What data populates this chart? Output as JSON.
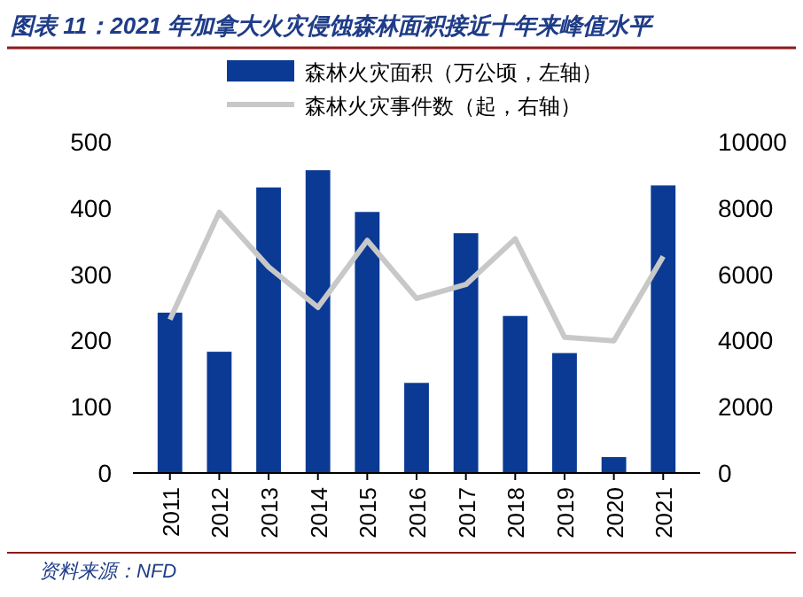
{
  "chart_data": {
    "type": "bar",
    "title": "图表 11：2021 年加拿大火灾侵蚀森林面积接近十年来峰值水平",
    "annotations": [
      "资料来源：NFD"
    ],
    "categories": [
      "2011",
      "2012",
      "2013",
      "2014",
      "2015",
      "2016",
      "2017",
      "2018",
      "2019",
      "2020",
      "2021"
    ],
    "series": [
      {
        "name": "森林火灾面积（万公顷，左轴）",
        "color": "#0a3a94",
        "values": [
          242,
          183,
          431,
          457,
          394,
          136,
          362,
          237,
          181,
          24,
          434
        ]
      },
      {
        "name": "森林火灾事件数（起，右轴）",
        "type": "line",
        "axis": "y2",
        "color": "#c8c8c8",
        "values": [
          4630,
          7870,
          6220,
          5000,
          7020,
          5270,
          5690,
          7070,
          4100,
          3990,
          6540
        ]
      }
    ],
    "ylim": [
      0,
      500
    ],
    "yticks": [
      0,
      100,
      200,
      300,
      400,
      500
    ],
    "y2lim": [
      0,
      10000
    ],
    "y2ticks": [
      0,
      2000,
      4000,
      6000,
      8000,
      10000
    ],
    "legend": "top",
    "grid": false,
    "marker": "none",
    "line_style": "solid"
  }
}
